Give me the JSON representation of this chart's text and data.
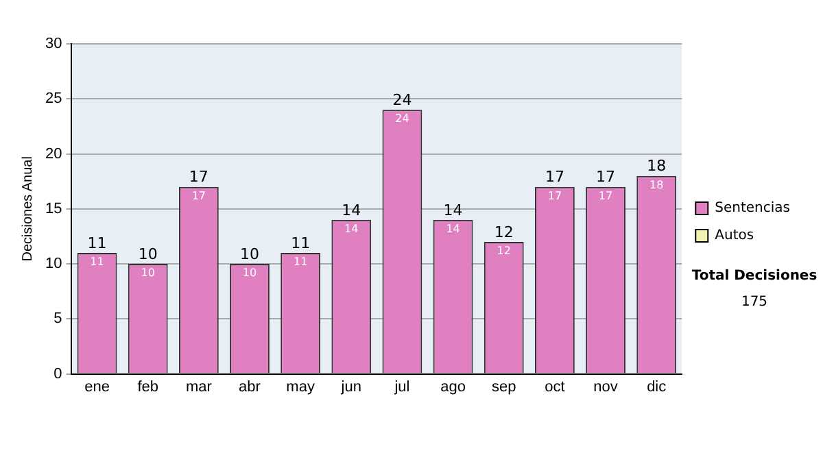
{
  "chart_data": {
    "type": "bar",
    "ylabel": "Decisiones Anual",
    "categories": [
      "ene",
      "feb",
      "mar",
      "abr",
      "may",
      "jun",
      "jul",
      "ago",
      "sep",
      "oct",
      "nov",
      "dic"
    ],
    "stacked": true,
    "series": [
      {
        "name": "Sentencias",
        "color": "#e080c0",
        "values": [
          11,
          10,
          17,
          10,
          11,
          14,
          24,
          14,
          12,
          17,
          17,
          18
        ],
        "value_labels": [
          "11",
          "10",
          "17",
          "10",
          "11",
          "14",
          "24",
          "14",
          "12",
          "17",
          "17",
          "18"
        ]
      },
      {
        "name": "Autos",
        "color": "#f0f0b0",
        "values": [
          0,
          0,
          0,
          0,
          0,
          0,
          0,
          0,
          0,
          0,
          0,
          0
        ]
      }
    ],
    "totals": [
      "11",
      "10",
      "17",
      "10",
      "11",
      "14",
      "24",
      "14",
      "12",
      "17",
      "17",
      "18"
    ],
    "ylim": [
      0,
      30
    ],
    "yticks": [
      0,
      5,
      10,
      15,
      20,
      25,
      30
    ],
    "grid": "y",
    "legend": "right",
    "annotations": [
      "Total Decisiones",
      "175"
    ]
  }
}
